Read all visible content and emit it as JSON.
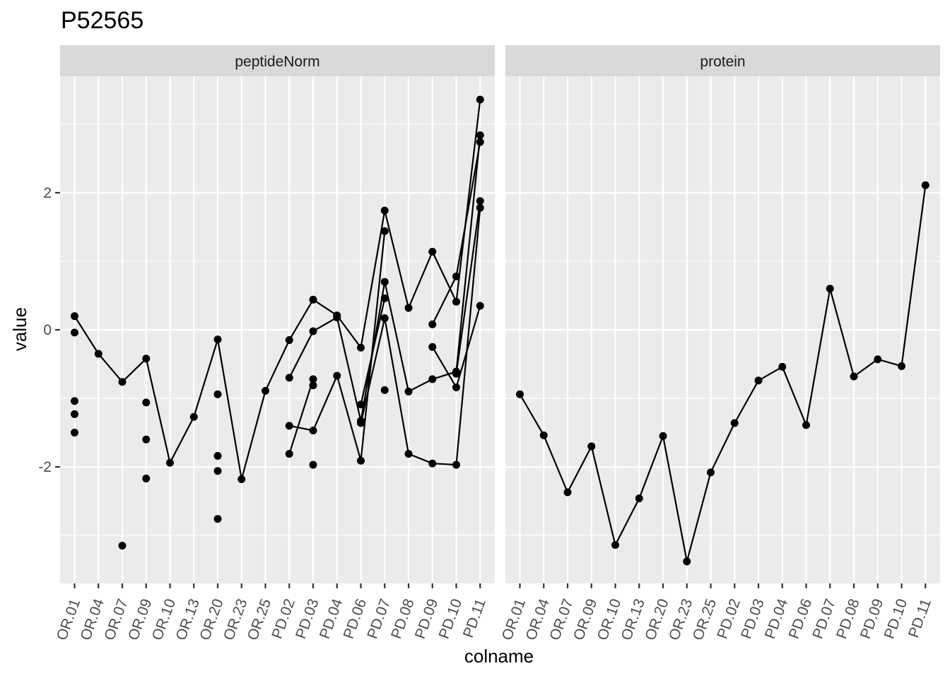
{
  "chart_data": {
    "type": "line",
    "title": "P52565",
    "xlabel": "colname",
    "ylabel": "value",
    "ylim": [
      -3.7,
      3.7
    ],
    "y_ticks": [
      -2,
      0,
      2
    ],
    "y_tick_labels": [
      "-2",
      "0",
      "2"
    ],
    "grid": true,
    "categories": [
      "OR.01",
      "OR.04",
      "OR.07",
      "OR.09",
      "OR.10",
      "OR.13",
      "OR.20",
      "OR.23",
      "OR.25",
      "PD.02",
      "PD.03",
      "PD.04",
      "PD.06",
      "PD.07",
      "PD.08",
      "PD.09",
      "PD.10",
      "PD.11"
    ],
    "facets": [
      {
        "name": "peptideNorm",
        "series": [
          {
            "values": [
              0.2,
              -0.35,
              -0.76,
              -0.42,
              -1.94,
              -1.27,
              -0.14,
              -2.18,
              -0.89,
              -0.15,
              0.44,
              0.21,
              -0.26,
              1.74,
              0.32,
              1.14,
              0.41,
              3.36
            ]
          },
          {
            "values": [
              null,
              null,
              null,
              null,
              null,
              null,
              null,
              null,
              null,
              -0.7,
              -0.02,
              0.18,
              -1.33,
              0.7,
              -0.9,
              -0.72,
              -0.61,
              2.84
            ]
          },
          {
            "values": [
              null,
              null,
              null,
              null,
              null,
              null,
              null,
              null,
              null,
              -1.4,
              -1.47,
              -0.67,
              -1.91,
              1.44,
              null,
              0.08,
              0.78,
              2.74
            ]
          },
          {
            "values": [
              null,
              null,
              null,
              null,
              null,
              null,
              null,
              null,
              null,
              -1.81,
              -0.72,
              null,
              -1.09,
              0.46,
              null,
              null,
              -0.64,
              1.88
            ]
          },
          {
            "values": [
              null,
              null,
              null,
              null,
              null,
              null,
              null,
              null,
              null,
              null,
              null,
              null,
              -1.36,
              0.17,
              -1.81,
              -1.95,
              -1.97,
              1.78
            ]
          },
          {
            "values": [
              null,
              null,
              null,
              null,
              null,
              null,
              null,
              null,
              null,
              null,
              null,
              null,
              null,
              -0.88,
              null,
              -0.25,
              -0.84,
              0.35
            ]
          }
        ],
        "points": [
          {
            "x": "OR.01",
            "y": -0.04
          },
          {
            "x": "OR.01",
            "y": -1.04
          },
          {
            "x": "OR.01",
            "y": -1.23
          },
          {
            "x": "OR.01",
            "y": -1.5
          },
          {
            "x": "OR.07",
            "y": -3.15
          },
          {
            "x": "OR.09",
            "y": -1.06
          },
          {
            "x": "OR.09",
            "y": -1.6
          },
          {
            "x": "OR.09",
            "y": -2.17
          },
          {
            "x": "OR.20",
            "y": -0.94
          },
          {
            "x": "OR.20",
            "y": -1.84
          },
          {
            "x": "OR.20",
            "y": -2.06
          },
          {
            "x": "OR.20",
            "y": -2.76
          },
          {
            "x": "PD.03",
            "y": -0.81
          },
          {
            "x": "PD.03",
            "y": -1.97
          }
        ]
      },
      {
        "name": "protein",
        "series": [
          {
            "values": [
              -0.94,
              -1.54,
              -2.37,
              -1.7,
              -3.14,
              -2.46,
              -1.55,
              -3.38,
              -2.08,
              -1.36,
              -0.74,
              -0.54,
              -1.39,
              0.6,
              -0.68,
              -0.43,
              -0.53,
              2.11
            ]
          }
        ],
        "points": []
      }
    ]
  }
}
